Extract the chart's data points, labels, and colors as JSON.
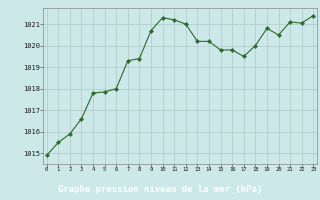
{
  "x": [
    0,
    1,
    2,
    3,
    4,
    5,
    6,
    7,
    8,
    9,
    10,
    11,
    12,
    13,
    14,
    15,
    16,
    17,
    18,
    19,
    20,
    21,
    22,
    23
  ],
  "y": [
    1014.9,
    1015.5,
    1015.9,
    1016.6,
    1017.8,
    1017.85,
    1018.0,
    1019.3,
    1019.4,
    1020.7,
    1021.3,
    1021.2,
    1021.0,
    1020.2,
    1020.2,
    1019.8,
    1019.8,
    1019.5,
    1020.0,
    1020.8,
    1020.5,
    1021.1,
    1021.05,
    1021.4
  ],
  "line_color": "#2d6a2d",
  "marker_color": "#2d6a2d",
  "plot_bg_color": "#cce8e8",
  "fig_bg_color": "#cce8e8",
  "xlabel_bg_color": "#2d6a2d",
  "xlabel_text_color": "#ffffff",
  "grid_color": "#b0c8c8",
  "ytick_color": "#1a1a1a",
  "xtick_color": "#1a1a1a",
  "xlabel": "Graphe pression niveau de la mer (hPa)",
  "yticks": [
    1015,
    1016,
    1017,
    1018,
    1019,
    1020,
    1021
  ],
  "xticks": [
    0,
    1,
    2,
    3,
    4,
    5,
    6,
    7,
    8,
    9,
    10,
    11,
    12,
    13,
    14,
    15,
    16,
    17,
    18,
    19,
    20,
    21,
    22,
    23
  ],
  "ylim": [
    1014.5,
    1021.75
  ],
  "xlim": [
    -0.3,
    23.3
  ]
}
